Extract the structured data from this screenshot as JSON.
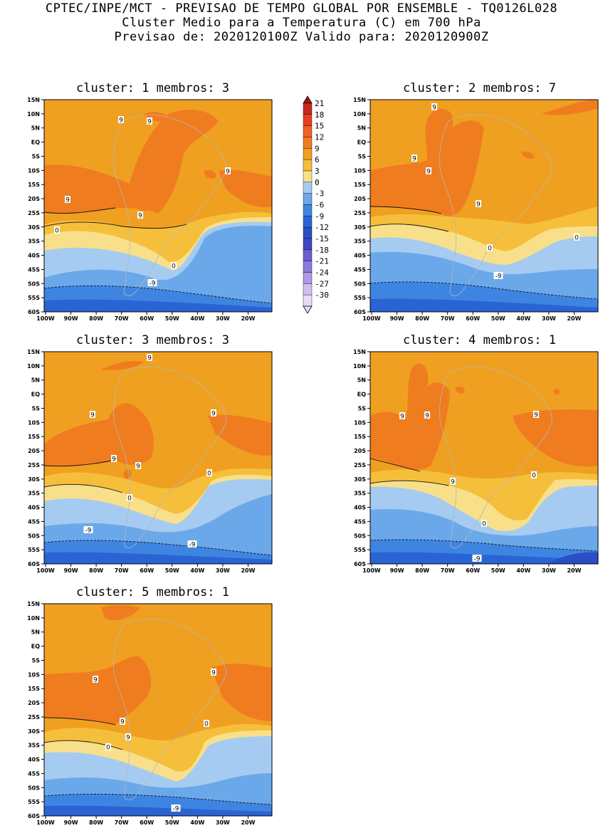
{
  "header": {
    "line1": "CPTEC/INPE/MCT - PREVISAO DE TEMPO GLOBAL POR ENSEMBLE - TQ0126L028",
    "line2": "Cluster Medio para a Temperatura (C) em 700 hPa",
    "line3": "Previsao de: 2020120100Z   Valido para: 2020120900Z"
  },
  "lat_labels": [
    "15N",
    "10N",
    "5N",
    "EQ",
    "5S",
    "10S",
    "15S",
    "20S",
    "25S",
    "30S",
    "35S",
    "40S",
    "45S",
    "50S",
    "55S",
    "60S"
  ],
  "lon_labels": [
    "100W",
    "90W",
    "80W",
    "70W",
    "60W",
    "50W",
    "40W",
    "30W",
    "20W"
  ],
  "legend": {
    "values": [
      "21",
      "18",
      "15",
      "12",
      "9",
      "6",
      "3",
      "0",
      "-3",
      "-6",
      "-9",
      "-12",
      "-15",
      "-18",
      "-21",
      "-24",
      "-27",
      "-30"
    ],
    "colors": [
      "#a01818",
      "#c8281e",
      "#e8401c",
      "#f0602a",
      "#f07c20",
      "#f0a020",
      "#f5bf3c",
      "#f8e08a",
      "#a6cbf0",
      "#6aa8ea",
      "#3e85e2",
      "#2a64d4",
      "#2a4ec4",
      "#4646c4",
      "#6a5ed2",
      "#8c7ade",
      "#ad9ae8",
      "#cdbff0",
      "#e6def6"
    ]
  },
  "panels": [
    {
      "title": "cluster: 1   membros: 3",
      "labels": [
        {
          "t": "9"
        },
        {
          "t": "9"
        },
        {
          "t": "9"
        },
        {
          "t": "9"
        },
        {
          "t": "9"
        },
        {
          "t": "0"
        },
        {
          "t": "0"
        },
        {
          "t": "-9"
        }
      ]
    },
    {
      "title": "cluster: 2   membros: 7",
      "labels": [
        {
          "t": "9"
        },
        {
          "t": "9"
        },
        {
          "t": "9"
        },
        {
          "t": "9"
        },
        {
          "t": "0"
        },
        {
          "t": "0"
        },
        {
          "t": "-9"
        }
      ]
    },
    {
      "title": "cluster: 3   membros: 3",
      "labels": [
        {
          "t": "9"
        },
        {
          "t": "9"
        },
        {
          "t": "9"
        },
        {
          "t": "9"
        },
        {
          "t": "9"
        },
        {
          "t": "0"
        },
        {
          "t": "0"
        },
        {
          "t": "-9"
        },
        {
          "t": "-9"
        }
      ]
    },
    {
      "title": "cluster: 4   membros: 1",
      "labels": [
        {
          "t": "9"
        },
        {
          "t": "9"
        },
        {
          "t": "9"
        },
        {
          "t": "9"
        },
        {
          "t": "0"
        },
        {
          "t": "0"
        },
        {
          "t": "-9"
        }
      ]
    },
    {
      "title": "cluster: 5   membros: 1",
      "labels": [
        {
          "t": "9"
        },
        {
          "t": "9"
        },
        {
          "t": "9"
        },
        {
          "t": "9"
        },
        {
          "t": "0"
        },
        {
          "t": "0"
        },
        {
          "t": "-9"
        }
      ]
    }
  ]
}
